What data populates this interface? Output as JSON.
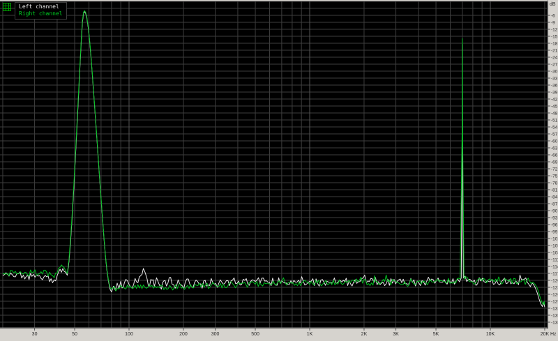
{
  "window": {
    "legend": {
      "items": [
        {
          "label": "Left channel",
          "color": "#e8e8e8"
        },
        {
          "label": "Right channel",
          "color": "#00cc22"
        }
      ]
    }
  },
  "colors": {
    "plot_background": "#000000",
    "grid": "#3e3e3e",
    "grid_decade": "#545454",
    "axis_border": "#8a8a8a",
    "margin_background": "#d6d3ce",
    "tick_text": "#2a2a2a",
    "left_trace": "#e8e8e8",
    "right_trace": "#00c020"
  },
  "chart_data": {
    "type": "line",
    "title": "",
    "xlabel": "Hz",
    "ylabel": "dB",
    "x_axis": {
      "scale": "log",
      "unit": "Hz",
      "min": 20,
      "max": 20000,
      "gridline_freqs": [
        20,
        30,
        40,
        50,
        60,
        70,
        80,
        90,
        100,
        200,
        300,
        400,
        500,
        600,
        700,
        800,
        900,
        1000,
        2000,
        3000,
        4000,
        5000,
        6000,
        7000,
        8000,
        9000,
        10000,
        20000
      ],
      "decade_freqs": [
        100,
        1000,
        10000
      ],
      "tick_labels": [
        {
          "label": "30",
          "f": 30
        },
        {
          "label": "50",
          "f": 50
        },
        {
          "label": "100",
          "f": 100
        },
        {
          "label": "200",
          "f": 200
        },
        {
          "label": "300",
          "f": 300
        },
        {
          "label": "500",
          "f": 500
        },
        {
          "label": "1K",
          "f": 1000
        },
        {
          "label": "2K",
          "f": 2000
        },
        {
          "label": "3K",
          "f": 3000
        },
        {
          "label": "5K",
          "f": 5000
        },
        {
          "label": "10K",
          "f": 10000
        },
        {
          "label": "20K",
          "f": 20000
        }
      ]
    },
    "y_axis": {
      "unit": "dB",
      "max": 0,
      "min": -141,
      "grid_step_db": 3,
      "tick_labels": [
        "-6",
        "-9",
        "-12",
        "-15",
        "-18",
        "-21",
        "-24",
        "-27",
        "-30",
        "-33",
        "-36",
        "-39",
        "-42",
        "-45",
        "-48",
        "-51",
        "-54",
        "-57",
        "-60",
        "-63",
        "-66",
        "-69",
        "-72",
        "-75",
        "-78",
        "-81",
        "-84",
        "-87",
        "-90",
        "-93",
        "-96",
        "-99",
        "-102",
        "-105",
        "-108",
        "-111",
        "-114",
        "-117",
        "-120",
        "-123",
        "-126",
        "-129",
        "-132",
        "-135",
        "-138"
      ]
    },
    "legend_position": "top-left",
    "grid": true,
    "series": [
      {
        "name": "Left channel",
        "color": "#e8e8e8",
        "jitter_db": 1.8,
        "seed": 7,
        "points": [
          [
            20,
            -118
          ],
          [
            23,
            -118.4
          ],
          [
            26,
            -117.8
          ],
          [
            29,
            -118.3
          ],
          [
            32,
            -118
          ],
          [
            35,
            -118.5
          ],
          [
            37,
            -119.3
          ],
          [
            38.5,
            -119.8
          ],
          [
            40,
            -118
          ],
          [
            41.5,
            -115.2
          ],
          [
            43,
            -114.9
          ],
          [
            44.5,
            -116.5
          ],
          [
            45.5,
            -117.8
          ],
          [
            46.5,
            -112
          ],
          [
            47.5,
            -103
          ],
          [
            48.5,
            -92
          ],
          [
            49.5,
            -80
          ],
          [
            50.5,
            -67
          ],
          [
            51.5,
            -54
          ],
          [
            52.5,
            -41
          ],
          [
            53.5,
            -28
          ],
          [
            54.5,
            -16
          ],
          [
            55.2,
            -9
          ],
          [
            56,
            -5
          ],
          [
            56.8,
            -4.3
          ],
          [
            57.6,
            -5.2
          ],
          [
            58.5,
            -7.5
          ],
          [
            59.5,
            -11.5
          ],
          [
            60.5,
            -17
          ],
          [
            61.5,
            -23.5
          ],
          [
            62.5,
            -30.5
          ],
          [
            63.5,
            -38
          ],
          [
            65,
            -49
          ],
          [
            66.5,
            -60
          ],
          [
            68,
            -71
          ],
          [
            69.5,
            -81.5
          ],
          [
            71,
            -91.5
          ],
          [
            72.5,
            -101
          ],
          [
            74,
            -109.5
          ],
          [
            75.5,
            -116
          ],
          [
            77,
            -120.5
          ],
          [
            78.5,
            -123.8
          ],
          [
            80,
            -125
          ],
          [
            82,
            -122.5
          ],
          [
            84,
            -124.3
          ],
          [
            86,
            -121.2
          ],
          [
            88,
            -123.6
          ],
          [
            90,
            -120.4
          ],
          [
            93,
            -122.8
          ],
          [
            96,
            -119.6
          ],
          [
            100,
            -121.8
          ],
          [
            104,
            -123.4
          ],
          [
            108,
            -119.2
          ],
          [
            112,
            -121
          ],
          [
            116,
            -118
          ],
          [
            120,
            -114.9
          ],
          [
            123,
            -116.8
          ],
          [
            126,
            -119.5
          ],
          [
            130,
            -122.4
          ],
          [
            134,
            -120
          ],
          [
            138,
            -122.6
          ],
          [
            142,
            -118.9
          ],
          [
            146,
            -121.3
          ],
          [
            151,
            -123.8
          ],
          [
            156,
            -120.2
          ],
          [
            161,
            -122.4
          ],
          [
            167,
            -118.8
          ],
          [
            173,
            -121.6
          ],
          [
            180,
            -123.4
          ],
          [
            187,
            -119.8
          ],
          [
            194,
            -121.9
          ],
          [
            201,
            -123.6
          ],
          [
            209,
            -119.4
          ],
          [
            217,
            -121.7
          ],
          [
            226,
            -123.2
          ],
          [
            235,
            -119.9
          ],
          [
            244,
            -121.5
          ],
          [
            254,
            -123.4
          ],
          [
            264,
            -120
          ],
          [
            274,
            -122
          ],
          [
            285,
            -119.2
          ],
          [
            296,
            -121.6
          ],
          [
            308,
            -123
          ],
          [
            320,
            -119.8
          ],
          [
            333,
            -121.7
          ],
          [
            346,
            -120.1
          ],
          [
            360,
            -122.3
          ],
          [
            374,
            -119.9
          ],
          [
            389,
            -121.4
          ],
          [
            404,
            -120.3
          ],
          [
            420,
            -121.8
          ],
          [
            437,
            -120
          ],
          [
            454,
            -121.5
          ],
          [
            472,
            -120.4
          ],
          [
            500,
            -120.5
          ],
          [
            600,
            -120.9
          ],
          [
            700,
            -120.2
          ],
          [
            850,
            -120.8
          ],
          [
            1000,
            -120.4
          ],
          [
            1200,
            -120.9
          ],
          [
            1450,
            -120.3
          ],
          [
            1750,
            -120.8
          ],
          [
            2100,
            -120.3
          ],
          [
            2550,
            -120.9
          ],
          [
            3050,
            -120.4
          ],
          [
            3700,
            -120.9
          ],
          [
            4450,
            -120.3
          ],
          [
            5350,
            -120.8
          ],
          [
            6450,
            -120.4
          ],
          [
            6900,
            -119
          ],
          [
            6980,
            -62
          ],
          [
            7000,
            -18.5
          ],
          [
            7020,
            -62
          ],
          [
            7100,
            -119
          ],
          [
            7400,
            -120.5
          ],
          [
            8000,
            -120.6
          ],
          [
            9600,
            -120.2
          ],
          [
            11500,
            -120.7
          ],
          [
            13800,
            -120.3
          ],
          [
            16000,
            -120.8
          ],
          [
            17000,
            -121
          ],
          [
            17400,
            -122
          ],
          [
            17800,
            -123.5
          ],
          [
            18200,
            -125.5
          ],
          [
            18600,
            -128
          ],
          [
            19000,
            -130
          ],
          [
            19400,
            -131.3
          ],
          [
            19700,
            -129.5
          ],
          [
            20000,
            -131.5
          ]
        ]
      },
      {
        "name": "Right channel",
        "color": "#00c020",
        "jitter_db": 1.4,
        "seed": 13,
        "points": [
          [
            20,
            -117.2
          ],
          [
            23,
            -116.8
          ],
          [
            26,
            -117.3
          ],
          [
            29,
            -116.7
          ],
          [
            32,
            -117.1
          ],
          [
            35,
            -116.5
          ],
          [
            37,
            -117.6
          ],
          [
            38.5,
            -118.9
          ],
          [
            40,
            -116.9
          ],
          [
            41.5,
            -114.4
          ],
          [
            43,
            -114.1
          ],
          [
            44.5,
            -115.8
          ],
          [
            45.5,
            -117
          ],
          [
            46.5,
            -111
          ],
          [
            47.5,
            -101.5
          ],
          [
            48.5,
            -90.5
          ],
          [
            49.5,
            -78.5
          ],
          [
            50.5,
            -65.5
          ],
          [
            51.5,
            -52.5
          ],
          [
            52.5,
            -39.5
          ],
          [
            53.5,
            -27
          ],
          [
            54.5,
            -15
          ],
          [
            55.2,
            -8.2
          ],
          [
            56,
            -4.6
          ],
          [
            56.8,
            -4
          ],
          [
            57.6,
            -4.8
          ],
          [
            58.5,
            -7
          ],
          [
            59.5,
            -11
          ],
          [
            60.5,
            -16.5
          ],
          [
            61.5,
            -23
          ],
          [
            62.5,
            -30
          ],
          [
            63.5,
            -37.5
          ],
          [
            65,
            -48.5
          ],
          [
            66.5,
            -59.5
          ],
          [
            68,
            -70.5
          ],
          [
            69.5,
            -81
          ],
          [
            71,
            -91
          ],
          [
            72.5,
            -100.5
          ],
          [
            74,
            -109
          ],
          [
            75.5,
            -115.5
          ],
          [
            77,
            -120
          ],
          [
            78.5,
            -123
          ],
          [
            80,
            -123.8
          ],
          [
            83,
            -122.6
          ],
          [
            86,
            -123.5
          ],
          [
            90,
            -122.2
          ],
          [
            94,
            -123.3
          ],
          [
            98,
            -122
          ],
          [
            103,
            -123.2
          ],
          [
            108,
            -122.1
          ],
          [
            114,
            -123.3
          ],
          [
            120,
            -122
          ],
          [
            127,
            -123.1
          ],
          [
            134,
            -122.2
          ],
          [
            142,
            -123.2
          ],
          [
            150,
            -122
          ],
          [
            159,
            -123
          ],
          [
            168,
            -122.2
          ],
          [
            178,
            -123.1
          ],
          [
            188,
            -122
          ],
          [
            199,
            -123
          ],
          [
            211,
            -122.2
          ],
          [
            223,
            -123
          ],
          [
            236,
            -122.1
          ],
          [
            250,
            -122.8
          ],
          [
            265,
            -122
          ],
          [
            281,
            -122.7
          ],
          [
            297,
            -121.8
          ],
          [
            315,
            -122.5
          ],
          [
            333,
            -121.6
          ],
          [
            353,
            -122.3
          ],
          [
            374,
            -121.4
          ],
          [
            396,
            -122.1
          ],
          [
            420,
            -121.2
          ],
          [
            444,
            -121.9
          ],
          [
            470,
            -121.1
          ],
          [
            500,
            -121.7
          ],
          [
            560,
            -121
          ],
          [
            640,
            -121.5
          ],
          [
            730,
            -120.9
          ],
          [
            840,
            -121.4
          ],
          [
            960,
            -120.8
          ],
          [
            1100,
            -121.3
          ],
          [
            1300,
            -120.7
          ],
          [
            1550,
            -121.2
          ],
          [
            1850,
            -120.6
          ],
          [
            2200,
            -121.1
          ],
          [
            2600,
            -120.5
          ],
          [
            3100,
            -121
          ],
          [
            3700,
            -120.5
          ],
          [
            4400,
            -121
          ],
          [
            5200,
            -120.5
          ],
          [
            6100,
            -120.9
          ],
          [
            6800,
            -119.5
          ],
          [
            6980,
            -55
          ],
          [
            7000,
            -16
          ],
          [
            7020,
            -55
          ],
          [
            7150,
            -119.5
          ],
          [
            7800,
            -120.6
          ],
          [
            9000,
            -120.2
          ],
          [
            10500,
            -120.7
          ],
          [
            12500,
            -120.2
          ],
          [
            14500,
            -120.6
          ],
          [
            16500,
            -120.3
          ],
          [
            17200,
            -120.8
          ],
          [
            17700,
            -121.8
          ],
          [
            18100,
            -123
          ],
          [
            18500,
            -125
          ],
          [
            18900,
            -127.5
          ],
          [
            19300,
            -129.5
          ],
          [
            19600,
            -130.5
          ],
          [
            19850,
            -129
          ],
          [
            20000,
            -130.5
          ]
        ]
      }
    ]
  }
}
